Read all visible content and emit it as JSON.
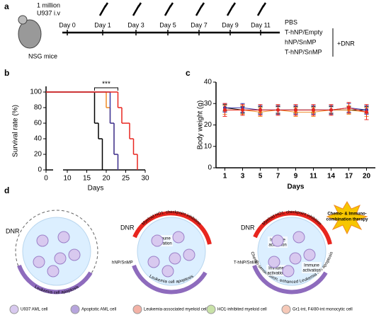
{
  "panel_labels": [
    "a",
    "b",
    "c",
    "d"
  ],
  "panel_a": {
    "inoculum": [
      "1 million",
      "U937 i.v"
    ],
    "mouse": "NSG mice",
    "days": [
      "Day 0",
      "Day 1",
      "Day 3",
      "Day 5",
      "Day 7",
      "Day 9",
      "Day 11"
    ],
    "combo": "+DNR"
  },
  "chart_data": [
    {
      "type": "step",
      "x_label": "Days",
      "y_label": "Survival rate (%)",
      "xlim": [
        0,
        30
      ],
      "xticks": [
        0,
        10,
        15,
        20,
        25,
        30
      ],
      "ylim": [
        0,
        100
      ],
      "yticks": [
        0,
        20,
        40,
        60,
        80,
        100
      ],
      "annotation": "***",
      "annotation_span": [
        17,
        23
      ],
      "series": [
        {
          "name": "PBS",
          "color": "#000000",
          "x": [
            0,
            17,
            18,
            19
          ],
          "values": [
            100,
            60,
            40,
            0
          ]
        },
        {
          "name": "T-hNP/Empty",
          "color": "#f08a24",
          "x": [
            0,
            20,
            21,
            22,
            23
          ],
          "values": [
            100,
            80,
            60,
            20,
            0
          ]
        },
        {
          "name": "hNP/SnMP",
          "color": "#3a3aa8",
          "x": [
            0,
            21,
            22,
            23
          ],
          "values": [
            100,
            60,
            20,
            0
          ]
        },
        {
          "name": "T-hNP/SnMP",
          "color": "#e8261f",
          "x": [
            0,
            23,
            24,
            26,
            27,
            28
          ],
          "values": [
            100,
            80,
            60,
            40,
            20,
            0
          ]
        }
      ]
    },
    {
      "type": "line",
      "x_label": "Days",
      "y_label": "Body weight (g)",
      "categories": [
        "1",
        "3",
        "5",
        "7",
        "9",
        "11",
        "14",
        "17",
        "20"
      ],
      "ylim": [
        0,
        40
      ],
      "yticks": [
        0,
        10,
        20,
        30,
        40
      ],
      "series": [
        {
          "color": "#000000",
          "values": [
            28,
            27,
            27,
            27,
            27,
            27,
            27,
            27,
            27
          ],
          "errors": [
            1.5,
            1.5,
            1.5,
            1.5,
            1.5,
            1.5,
            1.5,
            1.5,
            1.5
          ]
        },
        {
          "color": "#f08a24",
          "values": [
            27,
            27,
            26,
            27,
            26,
            26,
            27,
            27,
            26
          ],
          "errors": [
            2,
            2,
            2,
            2,
            2,
            2,
            2,
            2,
            2
          ]
        },
        {
          "color": "#3a3aa8",
          "values": [
            28,
            28,
            27,
            27,
            27,
            27,
            27,
            28,
            27
          ],
          "errors": [
            2,
            2,
            2,
            2,
            2,
            2,
            2,
            2,
            2
          ]
        },
        {
          "color": "#e8261f",
          "values": [
            27,
            27,
            27,
            27,
            27,
            27,
            27,
            28,
            26
          ],
          "errors": [
            3,
            2.5,
            2.5,
            2.5,
            2.5,
            2.5,
            2.5,
            2.5,
            3.5
          ]
        }
      ]
    }
  ],
  "panel_d": {
    "dnr": "DNR",
    "arc1": "Leukemia cell apoptosis",
    "arc2_top": "Myeloid HO1, checkpoint inhibition",
    "arc2_bottom": "Leukemia cell apoptosis",
    "np2": "hNP/SnMP",
    "np3": "T-hNP/SnMP",
    "immune": [
      "Immune",
      "activation"
    ],
    "arc3_top": "Myeloid HO1, checkpoint inhibition",
    "arc3_bottom": "Chemo-sensitization, enhanced Leukemia cell apoptosis",
    "burst": [
      "Chemo- & Immuno-",
      "combination therapy"
    ],
    "legend": [
      "U937 AML cell",
      "Apoptotic AML cell",
      "Leukemia-associated myeloid cell",
      "HO1-inhibited myeloid cell",
      "Gr1-int, F4/80-int monocytic cell"
    ]
  }
}
